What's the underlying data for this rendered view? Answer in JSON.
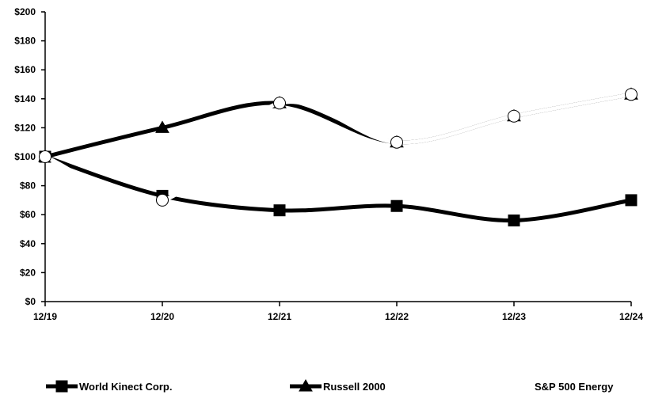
{
  "chart_data": {
    "type": "line",
    "categories": [
      "12/19",
      "12/20",
      "12/21",
      "12/22",
      "12/23",
      "12/24"
    ],
    "y_tick_labels": [
      "$0",
      "$20",
      "$40",
      "$60",
      "$80",
      "$100",
      "$120",
      "$140",
      "$160",
      "$180",
      "$200"
    ],
    "ylim": [
      0,
      200
    ],
    "y_step": 20,
    "grid": false,
    "legend_position": "bottom",
    "series": [
      {
        "name": "World Kinect Corp.",
        "marker": "square",
        "color": "#000000",
        "values": [
          100,
          73,
          63,
          66,
          56,
          70
        ]
      },
      {
        "name": "Russell 2000",
        "marker": "triangle",
        "color": "#000000",
        "values": [
          100,
          120,
          137,
          110,
          128,
          143
        ]
      },
      {
        "name": "S&P 500 Energy",
        "marker": "circle",
        "color": "#ffffff",
        "values": [
          100,
          70,
          137,
          110,
          128,
          143
        ]
      }
    ]
  }
}
